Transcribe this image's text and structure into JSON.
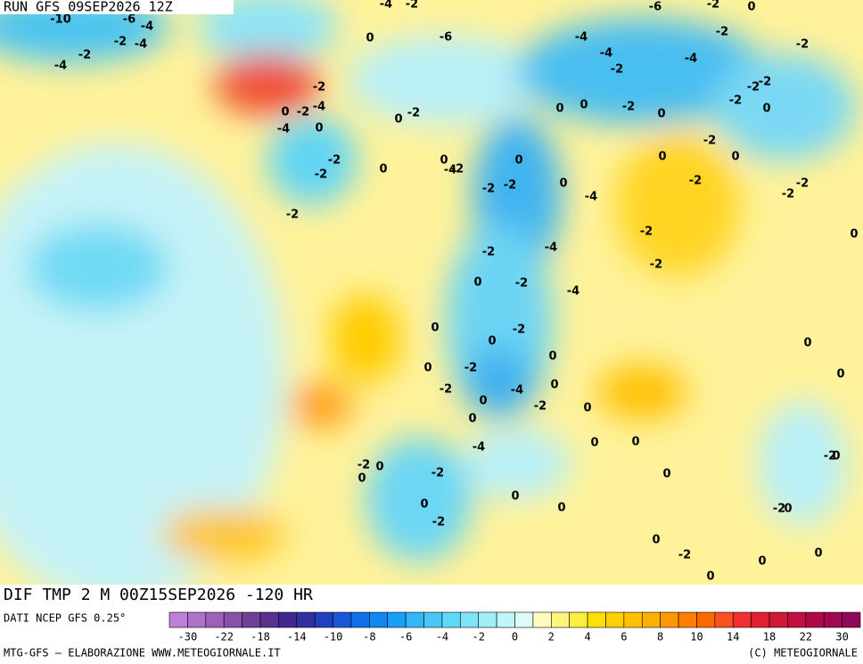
{
  "header": {
    "run": "RUN GFS 09SEP2026 12Z",
    "title": "DIF TMP 2 M 00Z15SEP2026 -120 HR",
    "source": "DATI NCEP GFS 0.25°",
    "credit_left": "MTG-GFS — ELABORAZIONE WWW.METEOGIORNALE.IT",
    "credit_right": "(C) METEOGIORNALE"
  },
  "colorbar": {
    "colors": [
      "#c080d8",
      "#b070c8",
      "#a060b8",
      "#8850a8",
      "#704098",
      "#5a3090",
      "#402890",
      "#3030a0",
      "#2040c0",
      "#1858d8",
      "#1070e8",
      "#1088f0",
      "#18a0f8",
      "#30b8f8",
      "#48c8f8",
      "#60d8f8",
      "#80e4f8",
      "#a0eef8",
      "#c0f6fa",
      "#e0fafa",
      "#fffbc0",
      "#fff480",
      "#ffec40",
      "#ffe000",
      "#ffd000",
      "#ffc000",
      "#ffb000",
      "#ff9800",
      "#ff8000",
      "#ff6800",
      "#f85020",
      "#f03030",
      "#e02030",
      "#d01838",
      "#c01040",
      "#b00848",
      "#a00850",
      "#900858"
    ],
    "labels": [
      "-30",
      "-22",
      "-18",
      "-14",
      "-10",
      "-8",
      "-6",
      "-4",
      "-2",
      "0",
      "2",
      "4",
      "6",
      "8",
      "10",
      "14",
      "18",
      "22",
      "30"
    ]
  },
  "contour_labels": [
    "-10",
    "-6",
    "-2",
    "-4",
    "-4",
    "-2",
    "-4",
    "-2",
    "0",
    "-2",
    "-4",
    "-4",
    "-2",
    "-2",
    "-2",
    "-6",
    "-4",
    "-2",
    "-4",
    "-4",
    "-2",
    "0",
    "0",
    "-2",
    "-2",
    "0",
    "-4",
    "0",
    "0",
    "-2",
    "0",
    "-2",
    "0",
    "-2",
    "-4",
    "-6",
    "-2",
    "0",
    "-2",
    "0",
    "-2",
    "0",
    "-2",
    "-2",
    "0",
    "-2",
    "-2",
    "0",
    "-2",
    "0",
    "-2",
    "-2",
    "0",
    "0",
    "-4",
    "-2",
    "-2",
    "-4",
    "-2",
    "0",
    "-2",
    "-4",
    "-2",
    "0",
    "0",
    "0",
    "-2",
    "-2",
    "0",
    "-4",
    "-2",
    "0",
    "0",
    "0",
    "-4",
    "-2",
    "0",
    "-2",
    "-2",
    "0",
    "0",
    "0",
    "0",
    "0",
    "0",
    "0",
    "0",
    "-2",
    "0",
    "0",
    "0",
    "0",
    "0",
    "-2",
    "0",
    "-2",
    "0",
    "0"
  ]
}
